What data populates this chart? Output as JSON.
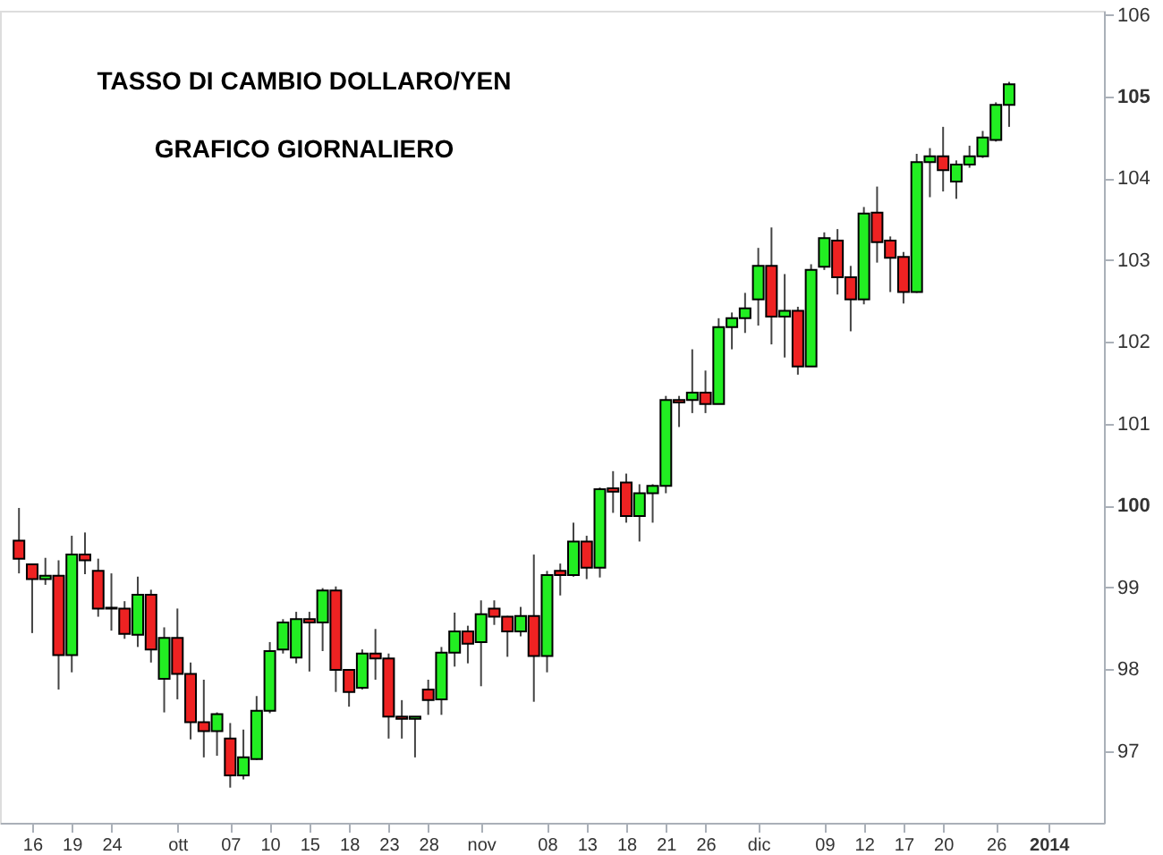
{
  "chart_data": {
    "type": "candlestick",
    "title": "TASSO DI CAMBIO DOLLARO/YEN",
    "subtitle": "GRAFICO GIORNALIERO",
    "categories": [
      null,
      "16",
      null,
      null,
      "19",
      null,
      null,
      "24",
      null,
      null,
      null,
      null,
      "ott",
      null,
      null,
      null,
      "07",
      null,
      null,
      "10",
      null,
      null,
      "15",
      null,
      null,
      "18",
      null,
      null,
      "23",
      null,
      null,
      "28",
      null,
      null,
      null,
      "nov",
      null,
      null,
      null,
      null,
      "08",
      null,
      null,
      "13",
      null,
      null,
      "18",
      null,
      null,
      "21",
      null,
      null,
      "26",
      null,
      null,
      null,
      "dic",
      null,
      null,
      null,
      null,
      "09",
      null,
      null,
      "12",
      null,
      null,
      "17",
      null,
      null,
      "20",
      null,
      null,
      null,
      "26",
      null,
      null,
      null,
      "2014"
    ],
    "ohlc": [
      [
        99.57,
        99.97,
        99.17,
        99.35
      ],
      [
        99.28,
        99.29,
        98.44,
        99.1
      ],
      [
        99.1,
        99.36,
        99.03,
        99.14
      ],
      [
        99.14,
        99.33,
        97.75,
        98.17
      ],
      [
        98.17,
        99.63,
        97.96,
        99.4
      ],
      [
        99.4,
        99.67,
        99.16,
        99.33
      ],
      [
        99.2,
        99.35,
        98.64,
        98.74
      ],
      [
        98.75,
        99.17,
        98.47,
        98.74
      ],
      [
        98.74,
        98.83,
        98.37,
        98.43
      ],
      [
        98.42,
        99.13,
        98.27,
        98.91
      ],
      [
        98.91,
        98.97,
        98.08,
        98.24
      ],
      [
        97.88,
        98.51,
        97.47,
        98.38
      ],
      [
        98.38,
        98.74,
        97.63,
        97.94
      ],
      [
        97.94,
        98.08,
        97.14,
        97.35
      ],
      [
        97.35,
        97.87,
        96.92,
        97.24
      ],
      [
        97.24,
        97.47,
        96.94,
        97.45
      ],
      [
        97.15,
        97.34,
        96.55,
        96.7
      ],
      [
        96.7,
        97.26,
        96.65,
        96.92
      ],
      [
        96.9,
        97.67,
        96.89,
        97.49
      ],
      [
        97.49,
        98.33,
        97.46,
        98.22
      ],
      [
        98.24,
        98.61,
        98.19,
        98.57
      ],
      [
        98.14,
        98.7,
        98.07,
        98.61
      ],
      [
        98.61,
        98.7,
        97.97,
        98.57
      ],
      [
        98.57,
        98.99,
        98.22,
        98.96
      ],
      [
        98.96,
        99.01,
        97.72,
        97.99
      ],
      [
        97.99,
        98.0,
        97.54,
        97.72
      ],
      [
        97.77,
        98.24,
        97.75,
        98.19
      ],
      [
        98.19,
        98.49,
        97.87,
        98.13
      ],
      [
        98.13,
        98.19,
        97.15,
        97.42
      ],
      [
        97.42,
        97.62,
        97.15,
        97.39
      ],
      [
        97.39,
        97.42,
        96.92,
        97.42
      ],
      [
        97.75,
        97.87,
        97.44,
        97.62
      ],
      [
        97.63,
        98.27,
        97.44,
        98.2
      ],
      [
        98.2,
        98.69,
        98.03,
        98.46
      ],
      [
        98.46,
        98.53,
        98.07,
        98.31
      ],
      [
        98.33,
        98.84,
        97.79,
        98.67
      ],
      [
        98.74,
        98.84,
        98.54,
        98.64
      ],
      [
        98.64,
        98.65,
        98.15,
        98.46
      ],
      [
        98.46,
        98.76,
        98.4,
        98.65
      ],
      [
        98.65,
        99.4,
        97.6,
        98.16
      ],
      [
        98.16,
        99.2,
        97.96,
        99.15
      ],
      [
        99.2,
        99.29,
        98.9,
        99.15
      ],
      [
        99.15,
        99.79,
        99.13,
        99.56
      ],
      [
        99.56,
        99.63,
        99.1,
        99.24
      ],
      [
        99.24,
        100.22,
        99.12,
        100.2
      ],
      [
        100.21,
        100.42,
        99.91,
        100.17
      ],
      [
        100.28,
        100.39,
        99.79,
        99.87
      ],
      [
        99.87,
        100.26,
        99.56,
        100.15
      ],
      [
        100.15,
        100.26,
        99.79,
        100.24
      ],
      [
        100.24,
        101.34,
        100.15,
        101.29
      ],
      [
        101.29,
        101.34,
        100.96,
        101.26
      ],
      [
        101.29,
        101.91,
        101.13,
        101.38
      ],
      [
        101.38,
        101.65,
        101.13,
        101.24
      ],
      [
        101.24,
        102.29,
        101.24,
        102.18
      ],
      [
        102.18,
        102.36,
        101.91,
        102.29
      ],
      [
        102.29,
        102.6,
        102.11,
        102.41
      ],
      [
        102.52,
        103.15,
        102.2,
        102.93
      ],
      [
        102.93,
        103.4,
        101.97,
        102.31
      ],
      [
        102.31,
        102.83,
        101.81,
        102.38
      ],
      [
        102.38,
        102.43,
        101.6,
        101.7
      ],
      [
        101.7,
        102.95,
        101.7,
        102.88
      ],
      [
        102.92,
        103.34,
        102.88,
        103.27
      ],
      [
        103.24,
        103.38,
        102.58,
        102.79
      ],
      [
        102.79,
        102.93,
        102.13,
        102.52
      ],
      [
        102.52,
        103.65,
        102.46,
        103.57
      ],
      [
        103.58,
        103.9,
        102.97,
        103.22
      ],
      [
        103.24,
        103.29,
        102.61,
        103.03
      ],
      [
        103.04,
        103.1,
        102.47,
        102.61
      ],
      [
        102.61,
        104.3,
        102.6,
        104.2
      ],
      [
        104.2,
        104.37,
        103.77,
        104.27
      ],
      [
        104.27,
        104.63,
        103.84,
        104.1
      ],
      [
        103.96,
        104.22,
        103.75,
        104.17
      ],
      [
        104.17,
        104.4,
        104.13,
        104.27
      ],
      [
        104.27,
        104.58,
        104.25,
        104.5
      ],
      [
        104.47,
        104.93,
        104.45,
        104.9
      ],
      [
        104.9,
        105.18,
        104.63,
        105.15
      ],
      null,
      null,
      null
    ],
    "colors": [
      "#ee2222",
      "#ee2222",
      "#22ee22",
      "#ee2222",
      "#22ee22",
      "#ee2222",
      "#ee2222",
      "#ee2222",
      "#ee2222",
      "#22ee22",
      "#ee2222",
      "#22ee22",
      "#ee2222",
      "#ee2222",
      "#ee2222",
      "#22ee22",
      "#ee2222",
      "#22ee22",
      "#22ee22",
      "#22ee22",
      "#22ee22",
      "#22ee22",
      "#ee2222",
      "#22ee22",
      "#ee2222",
      "#ee2222",
      "#22ee22",
      "#ee2222",
      "#ee2222",
      "#ee2222",
      "#22ee22",
      "#ee2222",
      "#22ee22",
      "#22ee22",
      "#ee2222",
      "#22ee22",
      "#ee2222",
      "#ee2222",
      "#22ee22",
      "#ee2222",
      "#22ee22",
      "#ee2222",
      "#22ee22",
      "#ee2222",
      "#22ee22",
      "#ee2222",
      "#ee2222",
      "#22ee22",
      "#22ee22",
      "#22ee22",
      "#ee2222",
      "#22ee22",
      "#ee2222",
      "#22ee22",
      "#22ee22",
      "#22ee22",
      "#22ee22",
      "#ee2222",
      "#22ee22",
      "#ee2222",
      "#22ee22",
      "#22ee22",
      "#ee2222",
      "#ee2222",
      "#22ee22",
      "#ee2222",
      "#ee2222",
      "#ee2222",
      "#22ee22",
      "#22ee22",
      "#ee2222",
      "#22ee22",
      "#22ee22",
      "#22ee22",
      "#22ee22",
      "#22ee22",
      null,
      null,
      null
    ],
    "ylim": [
      96.12,
      106.05
    ],
    "yticks": [
      97,
      98,
      99,
      100,
      101,
      102,
      103,
      104,
      105,
      106
    ],
    "grid": false
  }
}
